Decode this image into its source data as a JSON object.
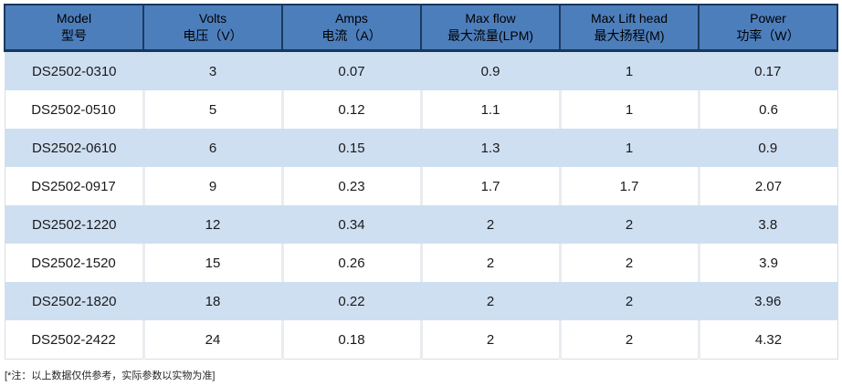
{
  "table": {
    "columns": [
      {
        "en": "Model",
        "zh": "型号"
      },
      {
        "en": "Volts",
        "zh": "电压（V）"
      },
      {
        "en": "Amps",
        "zh": "电流（A）"
      },
      {
        "en": "Max flow",
        "zh": "最大流量(LPM)"
      },
      {
        "en": "Max Lift head",
        "zh": "最大扬程(M)"
      },
      {
        "en": "Power",
        "zh": "功率（W）"
      }
    ],
    "rows": [
      [
        "DS2502-0310",
        "3",
        "0.07",
        "0.9",
        "1",
        "0.17"
      ],
      [
        "DS2502-0510",
        "5",
        "0.12",
        "1.1",
        "1",
        "0.6"
      ],
      [
        "DS2502-0610",
        "6",
        "0.15",
        "1.3",
        "1",
        "0.9"
      ],
      [
        "DS2502-0917",
        "9",
        "0.23",
        "1.7",
        "1.7",
        "2.07"
      ],
      [
        "DS2502-1220",
        "12",
        "0.34",
        "2",
        "2",
        "3.8"
      ],
      [
        "DS2502-1520",
        "15",
        "0.26",
        "2",
        "2",
        "3.9"
      ],
      [
        "DS2502-1820",
        "18",
        "0.22",
        "2",
        "2",
        "3.96"
      ],
      [
        "DS2502-2422",
        "24",
        "0.18",
        "2",
        "2",
        "4.32"
      ]
    ]
  },
  "footnote": "[*注：以上数据仅供参考，实际参数以实物为准]",
  "colors": {
    "header_bg": "#4d7ebc",
    "header_border": "#17365d",
    "row_alt_bg": "#cfdff2",
    "row_bg": "#ffffff",
    "divider": "#e9ecf0",
    "text": "#1a1a1a"
  },
  "chart_data": {
    "type": "table",
    "title": "",
    "columns": [
      "Model 型号",
      "Volts 电压（V）",
      "Amps 电流（A）",
      "Max flow 最大流量(LPM)",
      "Max Lift head 最大扬程(M)",
      "Power 功率（W）"
    ],
    "rows": [
      [
        "DS2502-0310",
        3,
        0.07,
        0.9,
        1,
        0.17
      ],
      [
        "DS2502-0510",
        5,
        0.12,
        1.1,
        1,
        0.6
      ],
      [
        "DS2502-0610",
        6,
        0.15,
        1.3,
        1,
        0.9
      ],
      [
        "DS2502-0917",
        9,
        0.23,
        1.7,
        1.7,
        2.07
      ],
      [
        "DS2502-1220",
        12,
        0.34,
        2,
        2,
        3.8
      ],
      [
        "DS2502-1520",
        15,
        0.26,
        2,
        2,
        3.9
      ],
      [
        "DS2502-1820",
        18,
        0.22,
        2,
        2,
        3.96
      ],
      [
        "DS2502-2422",
        24,
        0.18,
        2,
        2,
        4.32
      ]
    ],
    "annotations": [
      "[*注：以上数据仅供参考，实际参数以实物为准]"
    ]
  }
}
